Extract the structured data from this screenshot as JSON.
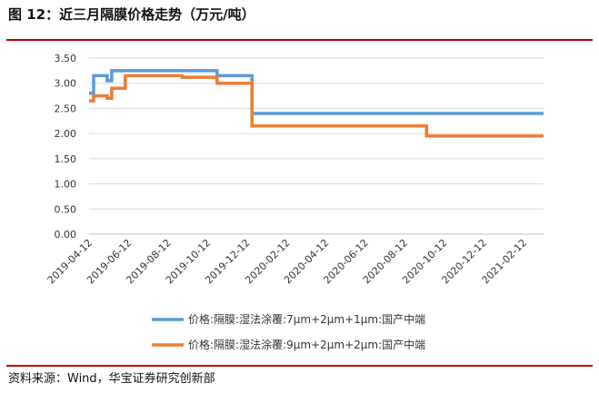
{
  "figure": {
    "title": "图 12：近三月隔膜价格走势（万元/吨）",
    "source": "资料来源：Wind，华宝证券研究创新部"
  },
  "colors": {
    "rule": "#c00000",
    "series_1": "#5b9bd5",
    "series_2": "#ed7d31",
    "grid": "#d9d9d9"
  },
  "chart_data": {
    "type": "line",
    "title": "",
    "xlabel": "",
    "ylabel": "",
    "ylim": [
      0,
      3.5
    ],
    "yticks": [
      "0.00",
      "0.50",
      "1.00",
      "1.50",
      "2.00",
      "2.50",
      "3.00",
      "3.50"
    ],
    "xlim": [
      "2019-04-12",
      "2021-03-15"
    ],
    "xticks": [
      "2019-04-12",
      "2019-06-12",
      "2019-08-12",
      "2019-10-12",
      "2019-12-12",
      "2020-02-12",
      "2020-04-12",
      "2020-06-12",
      "2020-08-12",
      "2020-10-12",
      "2020-12-12",
      "2021-02-12"
    ],
    "grid": "horizontal",
    "legend_position": "bottom",
    "step": true,
    "series": [
      {
        "name": "价格:隔膜:湿法涂覆:7μm+2μm+1μm:国产中端",
        "points": [
          [
            "2019-04-12",
            2.8
          ],
          [
            "2019-04-19",
            2.8
          ],
          [
            "2019-04-19",
            3.15
          ],
          [
            "2019-05-10",
            3.15
          ],
          [
            "2019-05-10",
            3.05
          ],
          [
            "2019-05-17",
            3.05
          ],
          [
            "2019-05-17",
            3.25
          ],
          [
            "2019-10-27",
            3.25
          ],
          [
            "2019-10-27",
            3.15
          ],
          [
            "2019-12-20",
            3.15
          ],
          [
            "2019-12-20",
            2.4
          ],
          [
            "2021-03-15",
            2.4
          ]
        ]
      },
      {
        "name": "价格:隔膜:湿法涂覆:9μm+2μm+2μm:国产中端",
        "points": [
          [
            "2019-04-12",
            2.65
          ],
          [
            "2019-04-19",
            2.65
          ],
          [
            "2019-04-19",
            2.75
          ],
          [
            "2019-05-10",
            2.75
          ],
          [
            "2019-05-10",
            2.7
          ],
          [
            "2019-05-17",
            2.7
          ],
          [
            "2019-05-17",
            2.9
          ],
          [
            "2019-06-07",
            2.9
          ],
          [
            "2019-06-07",
            3.15
          ],
          [
            "2019-09-03",
            3.15
          ],
          [
            "2019-09-03",
            3.12
          ],
          [
            "2019-10-27",
            3.12
          ],
          [
            "2019-10-27",
            3.0
          ],
          [
            "2019-12-20",
            3.0
          ],
          [
            "2019-12-20",
            2.15
          ],
          [
            "2020-09-15",
            2.15
          ],
          [
            "2020-09-15",
            1.95
          ],
          [
            "2021-03-15",
            1.95
          ]
        ]
      }
    ]
  }
}
